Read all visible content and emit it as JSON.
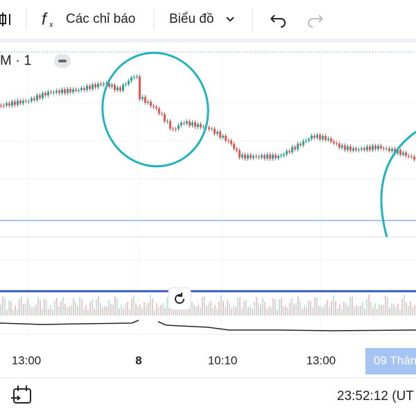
{
  "toolbar": {
    "indicators": "Các chỉ báo",
    "chart_type": "Biểu đồ"
  },
  "symbol_label": "M · 1",
  "time_axis": [
    "13:00",
    "8",
    "10:10",
    "13:00",
    "09 Thán"
  ],
  "footer": {
    "clock": "23:52:12 (UT"
  }
}
